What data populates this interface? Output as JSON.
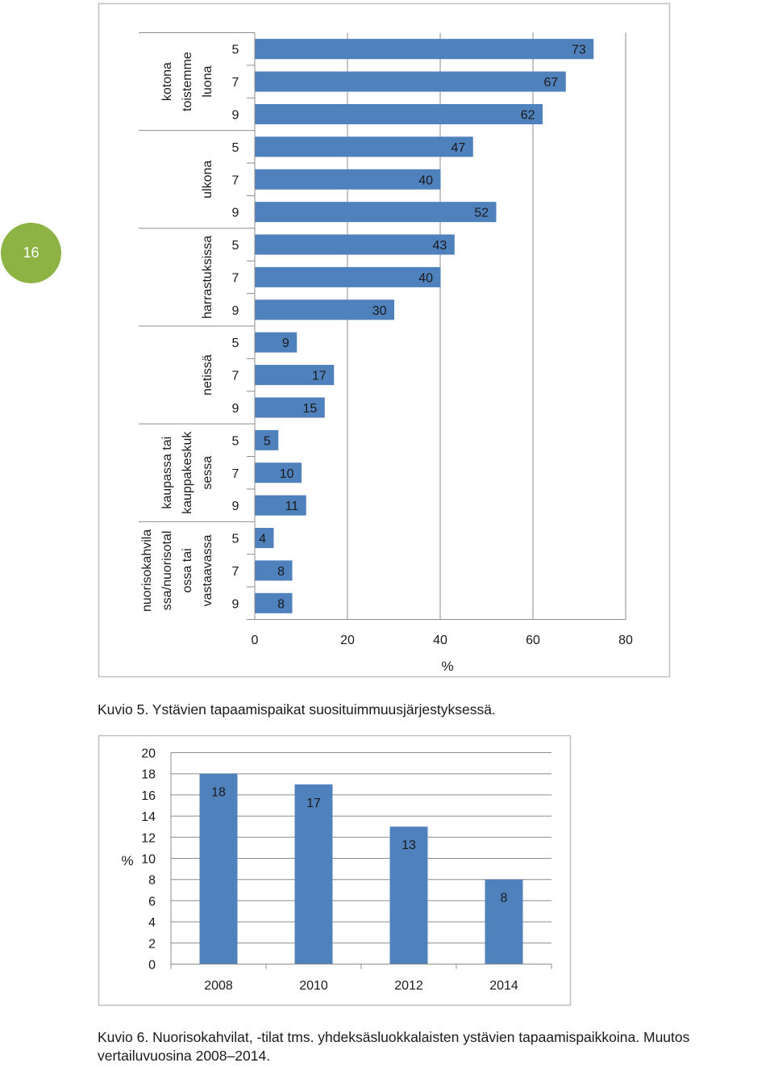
{
  "page_number": "16",
  "chart_data": [
    {
      "type": "bar",
      "orientation": "horizontal",
      "title": "",
      "xlabel": "%",
      "ylabel": "",
      "xlim": [
        0,
        80
      ],
      "x_ticks": [
        "0",
        "20",
        "40",
        "60",
        "80"
      ],
      "grid": true,
      "groups": [
        {
          "label": "kotona toistemme luona",
          "grades": [
            "5",
            "7",
            "9"
          ],
          "values": [
            73,
            67,
            62
          ]
        },
        {
          "label": "ulkona",
          "grades": [
            "5",
            "7",
            "9"
          ],
          "values": [
            47,
            40,
            52
          ]
        },
        {
          "label": "harrastuksissa",
          "grades": [
            "5",
            "7",
            "9"
          ],
          "values": [
            43,
            40,
            30
          ]
        },
        {
          "label": "netissä",
          "grades": [
            "5",
            "7",
            "9"
          ],
          "values": [
            9,
            17,
            15
          ]
        },
        {
          "label": "kaupassa tai kauppakeskuksessa",
          "label_lines": [
            "kaupassa tai",
            "kauppakeskuk",
            "sessa"
          ],
          "grades": [
            "5",
            "7",
            "9"
          ],
          "values": [
            5,
            10,
            11
          ]
        },
        {
          "label": "nuorisokahvilassa/nuorisotalossa tai vastaavassa",
          "label_lines": [
            "nuorisokahvila",
            "ssa/nuorisotal",
            "ossa tai",
            "vastaavassa"
          ],
          "grades": [
            "5",
            "7",
            "9"
          ],
          "values": [
            4,
            8,
            8
          ]
        }
      ],
      "bar_color": "#4f81bd"
    },
    {
      "type": "bar",
      "title": "",
      "xlabel": "",
      "ylabel": "%",
      "ylim": [
        0,
        20
      ],
      "y_ticks": [
        "0",
        "2",
        "4",
        "6",
        "8",
        "10",
        "12",
        "14",
        "16",
        "18",
        "20"
      ],
      "categories": [
        "2008",
        "2010",
        "2012",
        "2014"
      ],
      "values": [
        18,
        17,
        13,
        8
      ],
      "grid": true,
      "bar_color": "#4f81bd"
    }
  ],
  "captions": {
    "fig5": "Kuvio 5. Ystävien tapaamispaikat suosituimmuusjärjestyksessä.",
    "fig6_line1": "Kuvio 6. Nuorisokahvilat, -tilat tms. yhdeksäsluokkalaisten ystävien tapaamispaikkoina. Muutos",
    "fig6_line2": "vertailuvuosina 2008–2014."
  }
}
